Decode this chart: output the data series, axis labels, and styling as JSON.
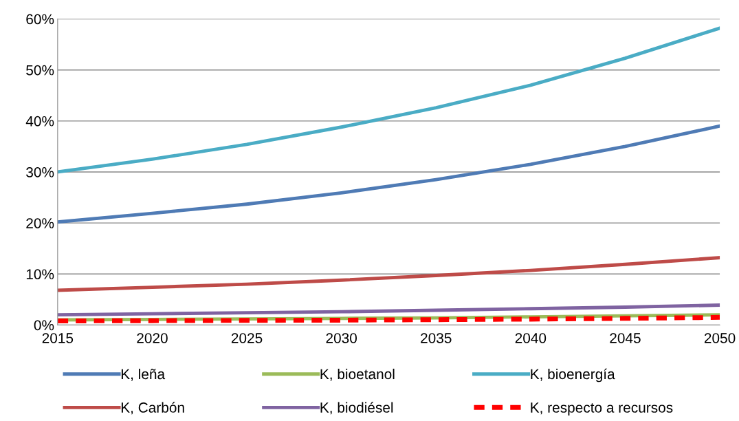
{
  "chart_data": {
    "type": "line",
    "x": [
      2015,
      2020,
      2025,
      2030,
      2035,
      2040,
      2045,
      2050
    ],
    "series": [
      {
        "name": "K, leña",
        "color": "#4f7bb5",
        "values": [
          20.2,
          21.9,
          23.7,
          25.9,
          28.5,
          31.5,
          35.0,
          39.0
        ]
      },
      {
        "name": "K, Carbón",
        "color": "#be4b48",
        "values": [
          6.8,
          7.4,
          8.0,
          8.8,
          9.7,
          10.7,
          11.9,
          13.2
        ]
      },
      {
        "name": "K, bioetanol",
        "color": "#9bbb59",
        "values": [
          1.0,
          1.1,
          1.2,
          1.3,
          1.4,
          1.6,
          1.8,
          2.0
        ]
      },
      {
        "name": "K, biodiésel",
        "color": "#7f63a1",
        "values": [
          2.0,
          2.2,
          2.4,
          2.6,
          2.9,
          3.2,
          3.5,
          3.9
        ]
      },
      {
        "name": "K, bioenergía",
        "color": "#4aacc5",
        "values": [
          30.0,
          32.5,
          35.4,
          38.8,
          42.6,
          47.0,
          52.3,
          58.2
        ]
      },
      {
        "name": "K, respecto a recursos",
        "color": "#ff0000",
        "line_style": "dashed",
        "values": [
          0.8,
          0.85,
          0.9,
          0.95,
          1.05,
          1.15,
          1.3,
          1.5
        ]
      }
    ],
    "xlim": [
      2015,
      2050
    ],
    "xticks": [
      2015,
      2020,
      2025,
      2030,
      2035,
      2040,
      2045,
      2050
    ],
    "ylim": [
      0,
      60
    ],
    "yticks": [
      {
        "value": 0,
        "label": "0%"
      },
      {
        "value": 10,
        "label": "10%"
      },
      {
        "value": 20,
        "label": "20%"
      },
      {
        "value": 30,
        "label": "30%"
      },
      {
        "value": 40,
        "label": "40%"
      },
      {
        "value": 50,
        "label": "50%"
      },
      {
        "value": 60,
        "label": "60%"
      }
    ],
    "grid": "y",
    "legend": "bottom",
    "marker": "none",
    "line_style": "solid"
  }
}
